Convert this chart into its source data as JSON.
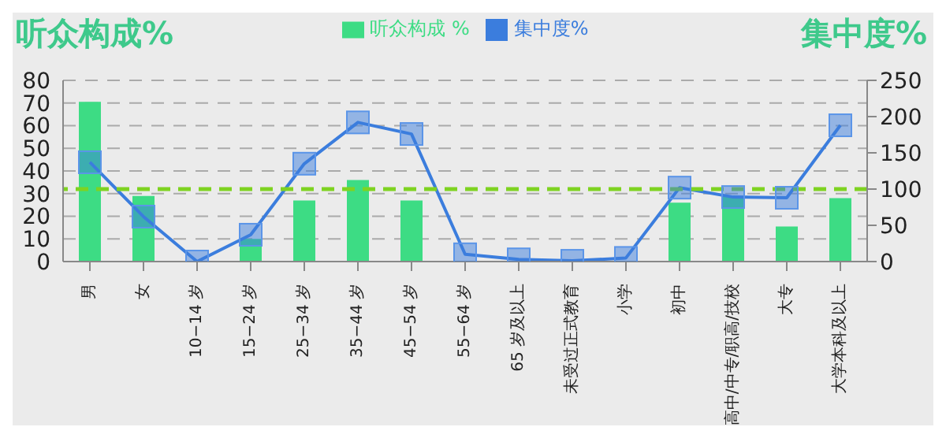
{
  "chart_data": {
    "type": "bar",
    "ylabel": "听众构成%",
    "y2label": "集中度%",
    "categories": [
      "男",
      "女",
      "10−14 岁",
      "15−24 岁",
      "25−34 岁",
      "35−44 岁",
      "45−54 岁",
      "55−64 岁",
      "65 岁及以上",
      "未受过正式教育",
      "小学",
      "初中",
      "高中/中专/职高/技校",
      "大专",
      "大学本科及以上"
    ],
    "series": [
      {
        "name": "听众构成 %",
        "color": "#3ddc84",
        "values": [
          70.5,
          29,
          null,
          10,
          27,
          36,
          27,
          null,
          null,
          null,
          null,
          26,
          29,
          15.5,
          28
        ]
      },
      {
        "name": "集中度%",
        "type": "line",
        "axis": "y2",
        "color": "#3b7ddd",
        "marker": "square",
        "values": [
          137,
          62,
          0,
          37,
          135,
          192,
          176,
          10,
          3,
          1,
          5,
          102,
          89,
          88,
          188
        ]
      }
    ],
    "ylim": [
      0,
      80
    ],
    "yticks": [
      0,
      10,
      20,
      30,
      40,
      50,
      60,
      70,
      80
    ],
    "y2lim": [
      0,
      250
    ],
    "y2ticks": [
      0,
      50,
      100,
      150,
      200,
      250
    ],
    "ref_lines": [
      {
        "axis": "y2",
        "value": 100,
        "color": "#7ed321",
        "line_style": "dashed"
      }
    ],
    "grid": "y",
    "legend": "top"
  }
}
